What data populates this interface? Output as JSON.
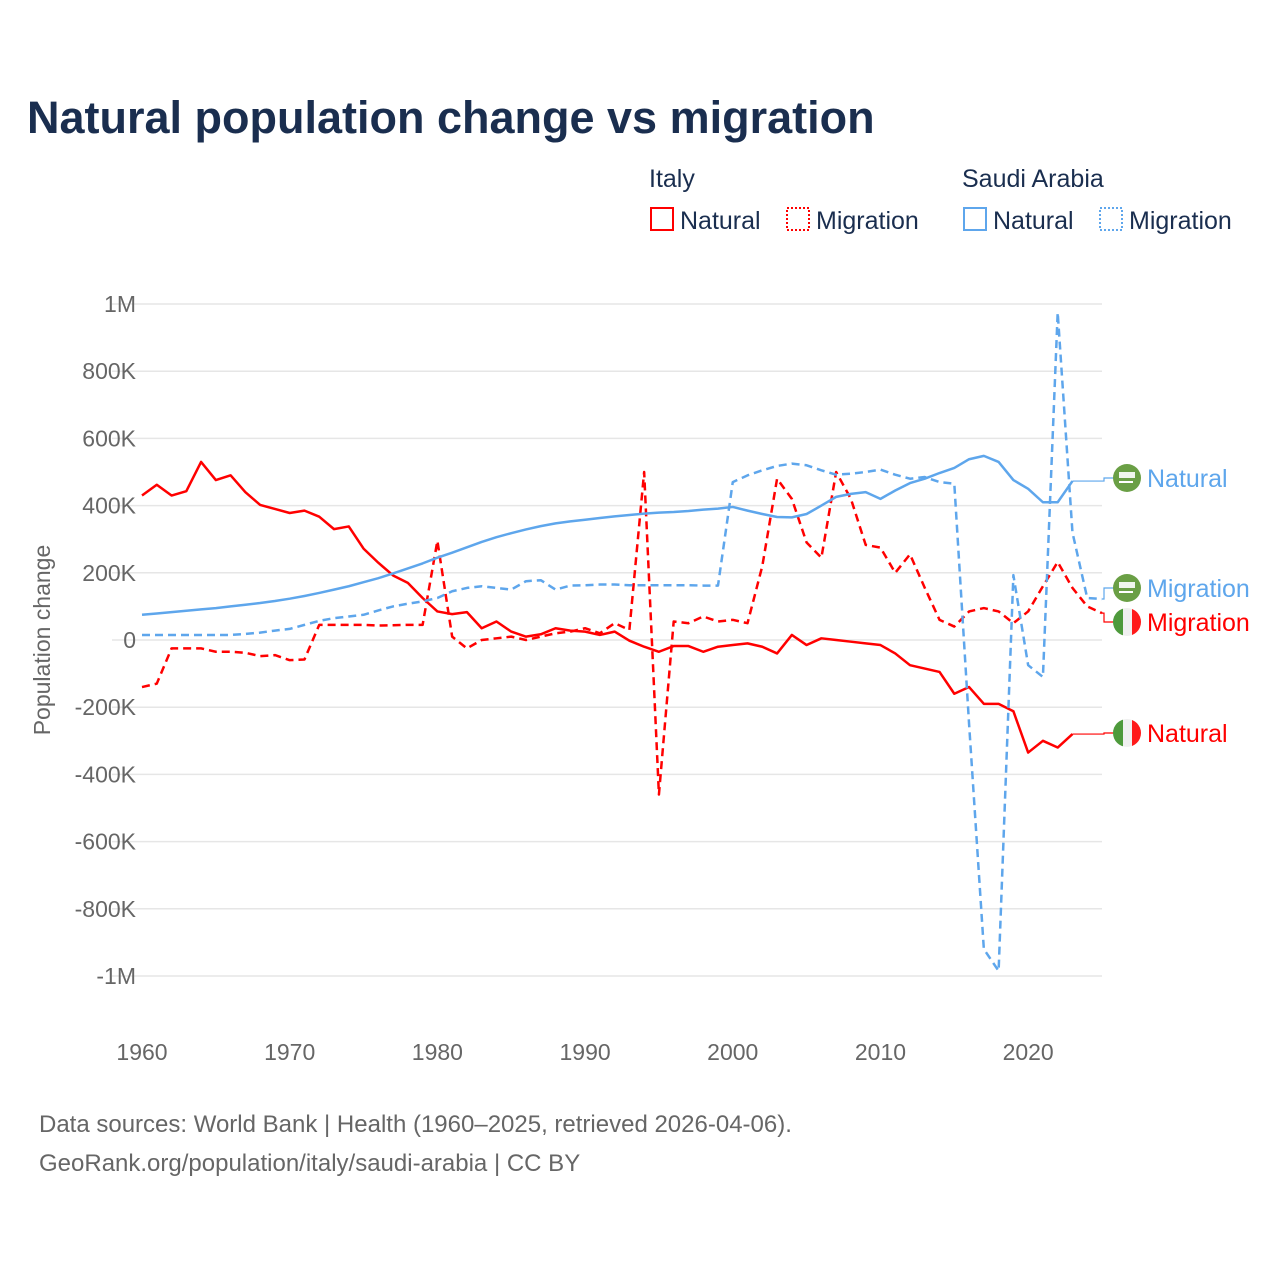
{
  "chart_data": {
    "type": "line",
    "title": "Natural population change vs migration",
    "xlabel": "",
    "ylabel": "Population change",
    "xlim": [
      1960,
      2025
    ],
    "ylim": [
      -1000000,
      1000000
    ],
    "grid": true,
    "legend_placement": "top-right",
    "x_ticks": [
      1960,
      1970,
      1980,
      1990,
      2000,
      2010,
      2020
    ],
    "x_tick_labels": [
      "1960",
      "1970",
      "1980",
      "1990",
      "2000",
      "2010",
      "2020"
    ],
    "y_ticks": [
      1000000,
      800000,
      600000,
      400000,
      200000,
      0,
      -200000,
      -400000,
      -600000,
      -800000,
      -1000000
    ],
    "y_tick_labels": [
      "1M",
      "800K",
      "600K",
      "400K",
      "200K",
      "0",
      "-200K",
      "-400K",
      "-600K",
      "-800K",
      "-1M"
    ],
    "legend": {
      "groups": [
        {
          "name": "Italy",
          "items": [
            "Natural",
            "Migration"
          ]
        },
        {
          "name": "Saudi Arabia",
          "items": [
            "Natural",
            "Migration"
          ]
        }
      ]
    },
    "series": [
      {
        "key": "it_nat",
        "country": "Italy",
        "name": "Natural",
        "color": "#ff0000",
        "dash": false,
        "start_year": 1960,
        "values": [
          430000,
          462000,
          430000,
          443000,
          530000,
          476000,
          490000,
          440000,
          402000,
          390000,
          378000,
          385000,
          367000,
          330000,
          338000,
          272000,
          230000,
          192000,
          170000,
          125000,
          85000,
          77000,
          83000,
          35000,
          55000,
          25000,
          10000,
          17000,
          35000,
          28000,
          25000,
          15000,
          25000,
          -2000,
          -20000,
          -35000,
          -18000,
          -18000,
          -35000,
          -20000,
          -15000,
          -10000,
          -20000,
          -40000,
          15000,
          -15000,
          5000,
          0,
          -5000,
          -10000,
          -15000,
          -40000,
          -75000,
          -85000,
          -95000,
          -160000,
          -140000,
          -190000,
          -190000,
          -212000,
          -335000,
          -300000,
          -320000,
          -280000
        ]
      },
      {
        "key": "it_mig",
        "country": "Italy",
        "name": "Migration",
        "color": "#ff0000",
        "dash": true,
        "start_year": 1960,
        "values": [
          -140000,
          -130000,
          -25000,
          -25000,
          -25000,
          -35000,
          -35000,
          -38000,
          -48000,
          -45000,
          -60000,
          -58000,
          45000,
          45000,
          45000,
          45000,
          43000,
          44000,
          45000,
          45000,
          295000,
          10000,
          -25000,
          0,
          5000,
          10000,
          0,
          10000,
          20000,
          25000,
          35000,
          20000,
          50000,
          30000,
          500000,
          -460000,
          55000,
          50000,
          70000,
          55000,
          60000,
          50000,
          220000,
          480000,
          420000,
          290000,
          245000,
          500000,
          420000,
          283000,
          275000,
          200000,
          255000,
          155000,
          60000,
          40000,
          85000,
          95000,
          85000,
          50000,
          85000,
          160000,
          232000,
          155000,
          100000,
          80000
        ]
      },
      {
        "key": "sa_nat",
        "country": "Saudi Arabia",
        "name": "Natural",
        "color": "#5ea6ec",
        "dash": false,
        "start_year": 1960,
        "values": [
          75000,
          79000,
          83000,
          87000,
          91000,
          95000,
          100000,
          105000,
          110000,
          116000,
          123000,
          131000,
          140000,
          150000,
          160000,
          172000,
          184000,
          198000,
          213000,
          228000,
          245000,
          260000,
          276000,
          292000,
          306000,
          318000,
          329000,
          339000,
          347000,
          353000,
          358000,
          363000,
          368000,
          372000,
          376000,
          379000,
          381000,
          384000,
          388000,
          391000,
          396000,
          385000,
          375000,
          366000,
          365000,
          375000,
          400000,
          426000,
          435000,
          440000,
          420000,
          445000,
          467000,
          480000,
          497000,
          512000,
          538000,
          548000,
          530000,
          476000,
          450000,
          410000,
          410000,
          473000
        ]
      },
      {
        "key": "sa_mig",
        "country": "Saudi Arabia",
        "name": "Migration",
        "color": "#5ea6ec",
        "dash": true,
        "start_year": 1960,
        "values": [
          15000,
          15000,
          15000,
          15000,
          15000,
          15000,
          15000,
          18000,
          22000,
          28000,
          33000,
          45000,
          57000,
          65000,
          70000,
          75000,
          88000,
          100000,
          108000,
          115000,
          125000,
          145000,
          155000,
          160000,
          155000,
          150000,
          175000,
          178000,
          150000,
          162000,
          163000,
          165000,
          165000,
          163000,
          163000,
          163000,
          163000,
          163000,
          162000,
          162000,
          470000,
          490000,
          505000,
          518000,
          525000,
          520000,
          505000,
          492000,
          495000,
          500000,
          507000,
          492000,
          480000,
          485000,
          470000,
          465000,
          -250000,
          -920000,
          -985000,
          193000,
          -75000,
          -110000,
          975000,
          320000,
          125000,
          122000
        ]
      }
    ],
    "end_labels": [
      "Natural",
      "Migration",
      "Migration",
      "Natural"
    ]
  },
  "source": {
    "line1": "Data sources: World Bank | Health (1960–2025, retrieved 2026-04-06).",
    "line2": "GeoRank.org/population/italy/saudi-arabia | CC BY"
  }
}
